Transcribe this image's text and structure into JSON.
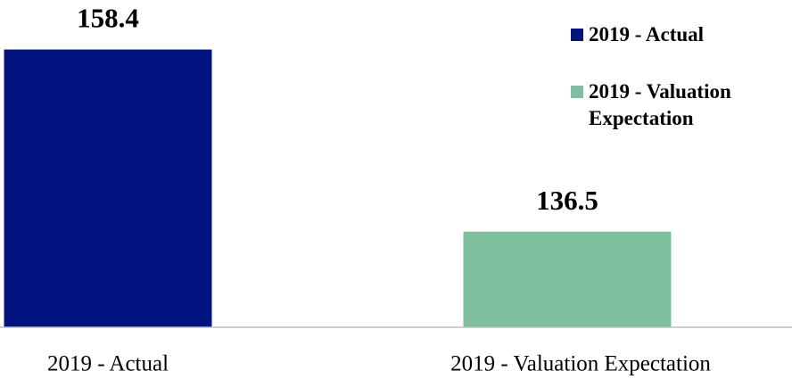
{
  "chart_data": {
    "type": "bar",
    "categories": [
      "2019 - Actual",
      "2019 - Valuation Expectation"
    ],
    "values": [
      158.4,
      136.5
    ],
    "colors": [
      "#00137f",
      "#7fbf9f"
    ],
    "ylim": [
      125,
      165
    ],
    "legend": "top-right"
  }
}
